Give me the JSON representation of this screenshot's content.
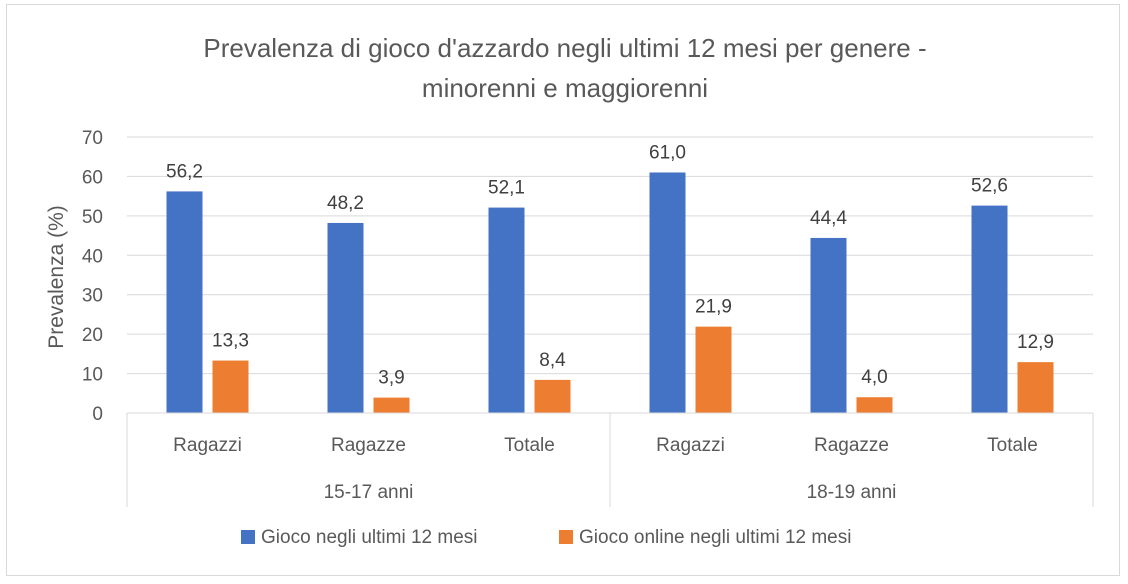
{
  "chart_data": {
    "type": "bar",
    "title_lines": [
      "Prevalenza di gioco d'azzardo negli ultimi 12 mesi per genere -",
      "minorenni e maggiorenni"
    ],
    "ylabel": "Prevalenza (%)",
    "xlabel": "",
    "ylim": [
      0,
      70
    ],
    "yticks": [
      0,
      10,
      20,
      30,
      40,
      50,
      60,
      70
    ],
    "groups": [
      {
        "label": "15-17 anni",
        "categories": [
          "Ragazzi",
          "Ragazze",
          "Totale"
        ]
      },
      {
        "label": "18-19 anni",
        "categories": [
          "Ragazzi",
          "Ragazze",
          "Totale"
        ]
      }
    ],
    "series": [
      {
        "name": "Gioco negli ultimi 12 mesi",
        "color": "#4472C4",
        "values": [
          56.2,
          48.2,
          52.1,
          61.0,
          44.4,
          52.6
        ],
        "labels": [
          "56,2",
          "48,2",
          "52,1",
          "61,0",
          "44,4",
          "52,6"
        ]
      },
      {
        "name": "Gioco online negli ultimi 12 mesi",
        "color": "#ED7D31",
        "values": [
          13.3,
          3.9,
          8.4,
          21.9,
          4.0,
          12.9
        ],
        "labels": [
          "13,3",
          "3,9",
          "8,4",
          "21,9",
          "4,0",
          "12,9"
        ]
      }
    ],
    "grid": true,
    "legend": "bottom"
  }
}
